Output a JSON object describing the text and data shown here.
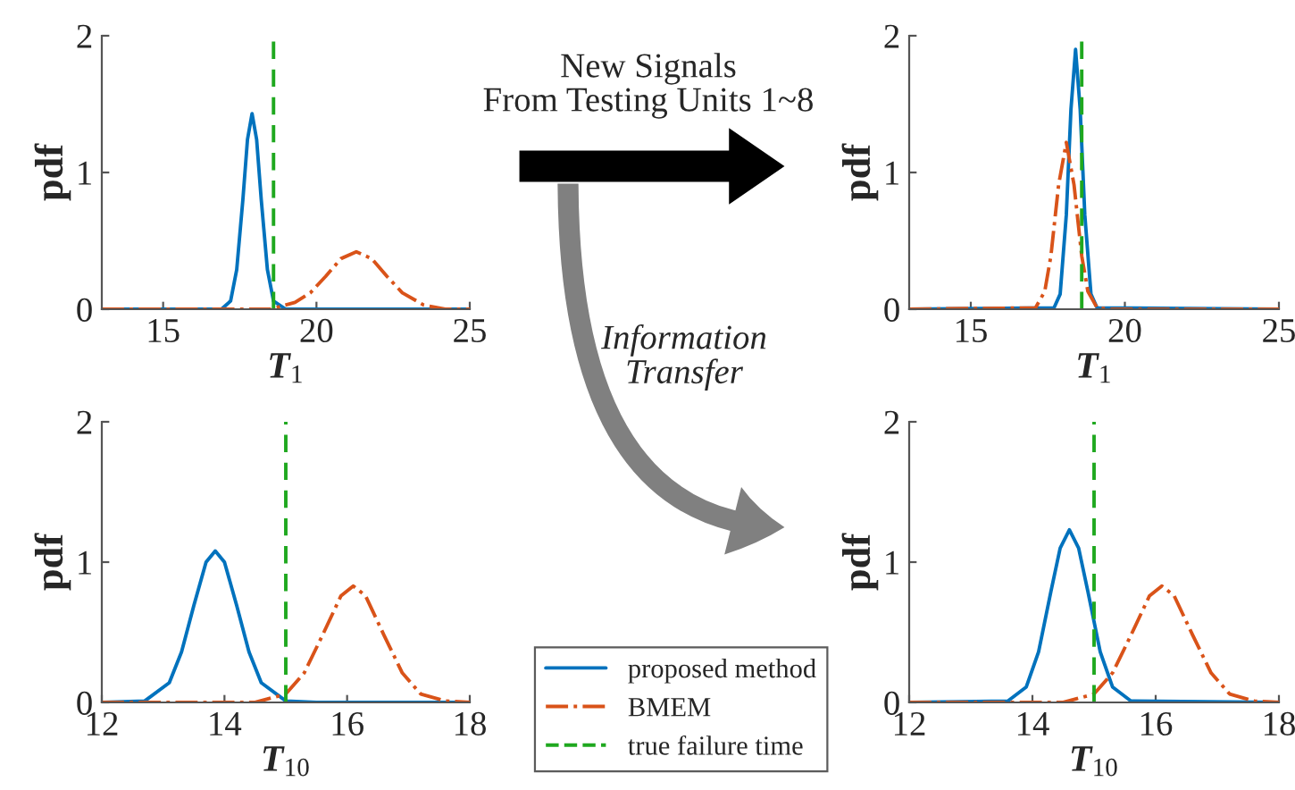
{
  "chart_data": [
    {
      "type": "line",
      "ylabel": "pdf",
      "xlabel": "T$_{1}$",
      "xlim": [
        13,
        25
      ],
      "xticks": [
        15,
        20,
        25
      ],
      "ylim": [
        0,
        2
      ],
      "yticks": [
        0,
        1,
        2
      ],
      "grid": false,
      "marker": "none",
      "legend": "bottom right",
      "annotations": [
        "New Signals\nFrom Testing Units 1~8",
        "Information\nTransfer"
      ],
      "series": [
        {
          "name": "proposed method",
          "color": "#0072bd",
          "line_style": "solid",
          "x": [
            13,
            16.9,
            17.2,
            17.4,
            17.6,
            17.75,
            17.9,
            18.05,
            18.2,
            18.4,
            18.6,
            19,
            25
          ],
          "values": [
            0,
            0,
            0.06,
            0.29,
            0.8,
            1.24,
            1.43,
            1.24,
            0.8,
            0.29,
            0.06,
            0,
            0
          ]
        },
        {
          "name": "BMEM",
          "color": "#d95319",
          "line_style": "dashdot",
          "x": [
            13,
            18.5,
            19.3,
            19.8,
            20.3,
            20.8,
            21.3,
            21.8,
            22.3,
            22.8,
            23.5,
            24.2,
            25
          ],
          "values": [
            0,
            0,
            0.05,
            0.12,
            0.24,
            0.37,
            0.42,
            0.37,
            0.24,
            0.12,
            0.03,
            0,
            0
          ]
        }
      ],
      "ref_lines": [
        {
          "axis": "x",
          "value": 18.6,
          "label": "true failure time",
          "color": "#1fa81f",
          "line_style": "dashed"
        }
      ]
    },
    {
      "type": "line",
      "ylabel": "pdf",
      "xlabel": "T$_{1}$",
      "xlim": [
        13,
        25
      ],
      "xticks": [
        15,
        20,
        25
      ],
      "ylim": [
        0,
        2
      ],
      "yticks": [
        0,
        1,
        2
      ],
      "grid": false,
      "marker": "none",
      "series": [
        {
          "color": "#0072bd",
          "line_style": "solid",
          "x": [
            13,
            17.7,
            17.9,
            18.1,
            18.25,
            18.4,
            18.55,
            18.7,
            18.9,
            19.1,
            25
          ],
          "values": [
            0,
            0.01,
            0.11,
            0.69,
            1.46,
            1.9,
            1.46,
            0.69,
            0.11,
            0.01,
            0
          ]
        },
        {
          "color": "#d95319",
          "line_style": "dashdot",
          "x": [
            13,
            17.1,
            17.4,
            17.6,
            17.85,
            18.1,
            18.35,
            18.6,
            18.8,
            19.1,
            19.5,
            25
          ],
          "values": [
            0,
            0.01,
            0.13,
            0.39,
            0.91,
            1.22,
            0.91,
            0.39,
            0.13,
            0.01,
            0,
            0
          ]
        }
      ],
      "ref_lines": [
        {
          "axis": "x",
          "value": 18.6,
          "color": "#1fa81f",
          "line_style": "dashed"
        }
      ]
    },
    {
      "type": "line",
      "ylabel": "pdf",
      "xlabel": "T$_{10}$",
      "xlim": [
        12,
        18
      ],
      "xticks": [
        12,
        14,
        16,
        18
      ],
      "ylim": [
        0,
        2
      ],
      "yticks": [
        0,
        1,
        2
      ],
      "grid": false,
      "marker": "none",
      "series": [
        {
          "color": "#0072bd",
          "line_style": "solid",
          "x": [
            12,
            12.7,
            13.1,
            13.3,
            13.5,
            13.7,
            13.85,
            14.0,
            14.2,
            14.4,
            14.6,
            15.0,
            15.5,
            18
          ],
          "values": [
            0,
            0.01,
            0.14,
            0.36,
            0.69,
            1.0,
            1.08,
            1.0,
            0.69,
            0.36,
            0.14,
            0.01,
            0,
            0
          ]
        },
        {
          "color": "#d95319",
          "line_style": "dashdot",
          "x": [
            12,
            14.5,
            15.0,
            15.3,
            15.6,
            15.9,
            16.1,
            16.3,
            16.6,
            16.9,
            17.2,
            17.6,
            18
          ],
          "values": [
            0,
            0,
            0.06,
            0.21,
            0.48,
            0.76,
            0.83,
            0.76,
            0.48,
            0.21,
            0.06,
            0.01,
            0
          ]
        }
      ],
      "ref_lines": [
        {
          "axis": "x",
          "value": 15,
          "color": "#1fa81f",
          "line_style": "dashed"
        }
      ]
    },
    {
      "type": "line",
      "ylabel": "pdf",
      "xlabel": "T$_{10}$",
      "xlim": [
        12,
        18
      ],
      "xticks": [
        12,
        14,
        16,
        18
      ],
      "ylim": [
        0,
        2
      ],
      "yticks": [
        0,
        1,
        2
      ],
      "grid": false,
      "marker": "none",
      "series": [
        {
          "color": "#0072bd",
          "line_style": "solid",
          "x": [
            12,
            13.6,
            13.9,
            14.1,
            14.3,
            14.45,
            14.6,
            14.75,
            14.9,
            15.1,
            15.3,
            15.6,
            18
          ],
          "values": [
            0,
            0.01,
            0.11,
            0.36,
            0.79,
            1.1,
            1.23,
            1.1,
            0.79,
            0.36,
            0.11,
            0.01,
            0
          ]
        },
        {
          "color": "#d95319",
          "line_style": "dashdot",
          "x": [
            12,
            14.5,
            15.0,
            15.3,
            15.6,
            15.9,
            16.1,
            16.3,
            16.6,
            16.9,
            17.2,
            17.6,
            18
          ],
          "values": [
            0,
            0,
            0.06,
            0.21,
            0.48,
            0.76,
            0.83,
            0.76,
            0.48,
            0.21,
            0.06,
            0.01,
            0
          ]
        }
      ],
      "ref_lines": [
        {
          "axis": "x",
          "value": 15,
          "color": "#1fa81f",
          "line_style": "dashed"
        }
      ]
    }
  ]
}
